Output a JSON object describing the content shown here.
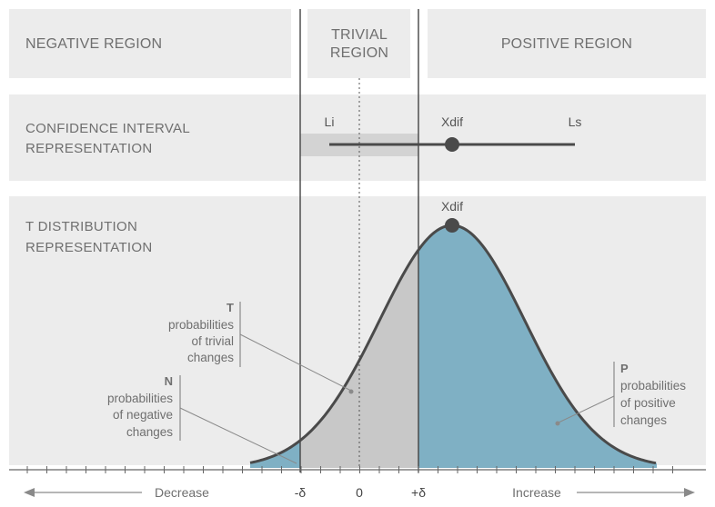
{
  "regions": {
    "negative": "NEGATIVE REGION",
    "trivial": [
      "TRIVIAL",
      "REGION"
    ],
    "positive": "POSITIVE REGION"
  },
  "confidence_interval": {
    "label": [
      "CONFIDENCE INTERVAL",
      "REPRESENTATION"
    ],
    "li": "Li",
    "xdif": "Xdif",
    "ls": "Ls"
  },
  "t_distribution": {
    "label": [
      "T DISTRIBUTION",
      "REPRESENTATION"
    ],
    "xdif": "Xdif"
  },
  "annotations": {
    "trivial": {
      "letter": "T",
      "lines": [
        "probabilities",
        "of trivial",
        "changes"
      ]
    },
    "negative": {
      "letter": "N",
      "lines": [
        "probabilities",
        "of negative",
        "changes"
      ]
    },
    "positive": {
      "letter": "P",
      "lines": [
        "probabilities",
        "of positive",
        "changes"
      ]
    }
  },
  "axis": {
    "decrease": "Decrease",
    "increase": "Increase",
    "ticks": {
      "minus_delta": "-δ",
      "zero": "0",
      "plus_delta": "+δ"
    }
  },
  "colors": {
    "band": "#ececec",
    "ci_shade": "#d3d3d3",
    "trivial_fill": "#c8c8c8",
    "positive_fill": "#7fb0c4",
    "curve": "#4a4a4a",
    "marker": "#4a4a4a"
  }
}
